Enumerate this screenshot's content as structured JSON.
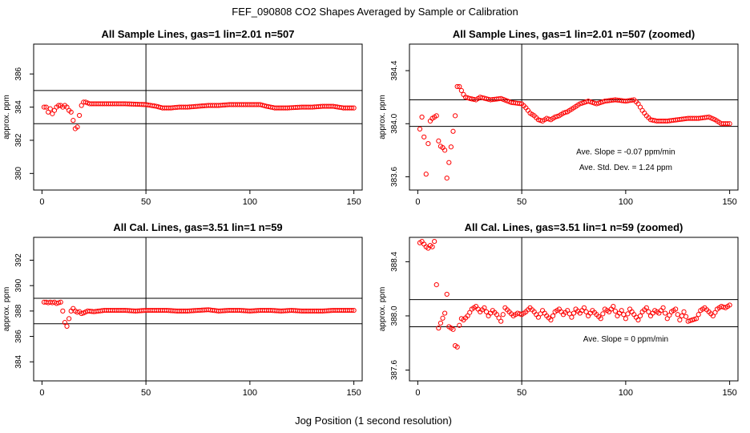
{
  "figure": {
    "title": "FEF_090808  CO2 Shapes Averaged by Sample or Calibration",
    "xlabel": "Jog Position (1 second resolution)"
  },
  "chart_data": [
    {
      "type": "scatter",
      "title": "All Sample Lines, gas=1 lin=2.01 n=507",
      "ylabel": "approx. ppm",
      "xlim": [
        -4,
        154
      ],
      "ylim": [
        379.0,
        387.8
      ],
      "xticks": [
        0,
        50,
        100,
        150
      ],
      "yticks": [
        380,
        382,
        384,
        386
      ],
      "ytick_labels": [
        "380",
        "382",
        "384",
        "386"
      ],
      "hlines": [
        383.0,
        385.0
      ],
      "vlines": [
        50
      ],
      "annotations": [],
      "marker_color": "#ff0000",
      "series": [
        {
          "name": "sample",
          "shape": [
            [
              1,
              384.0
            ],
            [
              2,
              384.0
            ],
            [
              3,
              383.7
            ],
            [
              4,
              383.9
            ],
            [
              5,
              383.6
            ],
            [
              6,
              383.8
            ],
            [
              7,
              384.0
            ],
            [
              8,
              384.1
            ],
            [
              9,
              384.1
            ],
            [
              10,
              384.0
            ],
            [
              11,
              384.1
            ],
            [
              12,
              384.0
            ],
            [
              13,
              383.8
            ],
            [
              14,
              383.7
            ],
            [
              15,
              383.2
            ],
            [
              16,
              382.7
            ],
            [
              17,
              382.8
            ],
            [
              18,
              383.5
            ],
            [
              19,
              384.1
            ],
            [
              20,
              384.3
            ],
            [
              21,
              384.3
            ],
            [
              22,
              384.25
            ],
            [
              23,
              384.2
            ],
            [
              24,
              384.2
            ],
            [
              25,
              384.2
            ],
            [
              30,
              384.2
            ],
            [
              40,
              384.2
            ],
            [
              50,
              384.15
            ],
            [
              55,
              384.05
            ],
            [
              58,
              383.95
            ],
            [
              62,
              383.95
            ],
            [
              66,
              384.0
            ],
            [
              70,
              384.0
            ],
            [
              75,
              384.05
            ],
            [
              80,
              384.1
            ],
            [
              85,
              384.1
            ],
            [
              90,
              384.15
            ],
            [
              95,
              384.15
            ],
            [
              100,
              384.15
            ],
            [
              105,
              384.15
            ],
            [
              108,
              384.05
            ],
            [
              112,
              383.95
            ],
            [
              118,
              383.95
            ],
            [
              125,
              384.0
            ],
            [
              130,
              384.0
            ],
            [
              135,
              384.05
            ],
            [
              140,
              384.05
            ],
            [
              145,
              383.95
            ],
            [
              150,
              383.95
            ]
          ]
        }
      ]
    },
    {
      "type": "scatter",
      "title": "All Sample Lines, gas=1 lin=2.01 n=507 (zoomed)",
      "ylabel": "approx. ppm",
      "xlim": [
        -4,
        154
      ],
      "ylim": [
        383.5,
        384.6
      ],
      "xticks": [
        0,
        50,
        100,
        150
      ],
      "yticks": [
        383.6,
        384.0,
        384.4
      ],
      "ytick_labels": [
        "383.6",
        "384.0",
        "384.4"
      ],
      "hlines": [
        384.18,
        383.98
      ],
      "vlines": [
        50
      ],
      "annotations": [
        {
          "text": "Ave. Slope =  -0.07  ppm/min",
          "x": 100,
          "y": 383.77
        },
        {
          "text": "Ave. Std. Dev. =  1.24  ppm",
          "x": 100,
          "y": 383.65
        }
      ],
      "marker_color": "#ff0000",
      "series": [
        {
          "name": "sample",
          "shape": [
            [
              1,
              383.96
            ],
            [
              2,
              384.05
            ],
            [
              3,
              383.9
            ],
            [
              4,
              383.62
            ],
            [
              5,
              383.85
            ],
            [
              6,
              384.02
            ],
            [
              7,
              384.04
            ],
            [
              8,
              384.05
            ],
            [
              9,
              384.06
            ],
            [
              10,
              383.87
            ],
            [
              11,
              383.83
            ],
            [
              12,
              383.82
            ],
            [
              13,
              383.8
            ],
            [
              14,
              383.59
            ],
            [
              18,
              384.06
            ],
            [
              19,
              384.28
            ],
            [
              20,
              384.28
            ],
            [
              21,
              384.25
            ],
            [
              22,
              384.22
            ],
            [
              23,
              384.2
            ],
            [
              25,
              384.19
            ],
            [
              28,
              384.18
            ],
            [
              30,
              384.2
            ],
            [
              35,
              384.18
            ],
            [
              40,
              384.19
            ],
            [
              45,
              384.16
            ],
            [
              50,
              384.15
            ],
            [
              52,
              384.12
            ],
            [
              54,
              384.08
            ],
            [
              56,
              384.06
            ],
            [
              58,
              384.03
            ],
            [
              60,
              384.02
            ],
            [
              62,
              384.04
            ],
            [
              64,
              384.03
            ],
            [
              66,
              384.05
            ],
            [
              68,
              384.06
            ],
            [
              70,
              384.08
            ],
            [
              72,
              384.09
            ],
            [
              75,
              384.12
            ],
            [
              78,
              384.15
            ],
            [
              82,
              384.17
            ],
            [
              86,
              384.15
            ],
            [
              90,
              384.17
            ],
            [
              95,
              384.18
            ],
            [
              100,
              384.17
            ],
            [
              104,
              384.18
            ],
            [
              106,
              384.15
            ],
            [
              108,
              384.1
            ],
            [
              110,
              384.06
            ],
            [
              112,
              384.03
            ],
            [
              115,
              384.02
            ],
            [
              120,
              384.02
            ],
            [
              125,
              384.03
            ],
            [
              130,
              384.04
            ],
            [
              135,
              384.04
            ],
            [
              140,
              384.05
            ],
            [
              143,
              384.03
            ],
            [
              146,
              384.0
            ],
            [
              148,
              384.0
            ],
            [
              150,
              384.0
            ]
          ]
        }
      ]
    },
    {
      "type": "scatter",
      "title": "All Cal. Lines, gas=3.51 lin=1 n=59",
      "ylabel": "approx. ppm",
      "xlim": [
        -4,
        154
      ],
      "ylim": [
        382.5,
        393.8
      ],
      "xticks": [
        0,
        50,
        100,
        150
      ],
      "yticks": [
        384,
        386,
        388,
        390,
        392
      ],
      "ytick_labels": [
        "384",
        "386",
        "388",
        "390",
        "392"
      ],
      "hlines": [
        389.0,
        387.0
      ],
      "vlines": [
        50
      ],
      "annotations": [],
      "marker_color": "#ff0000",
      "series": [
        {
          "name": "cal",
          "shape": [
            [
              1,
              388.7
            ],
            [
              2,
              388.7
            ],
            [
              3,
              388.65
            ],
            [
              4,
              388.7
            ],
            [
              5,
              388.65
            ],
            [
              6,
              388.7
            ],
            [
              7,
              388.6
            ],
            [
              8,
              388.65
            ],
            [
              9,
              388.7
            ],
            [
              10,
              388.0
            ],
            [
              11,
              387.1
            ],
            [
              12,
              386.8
            ],
            [
              13,
              387.4
            ],
            [
              14,
              388.0
            ],
            [
              15,
              388.2
            ],
            [
              16,
              388.0
            ],
            [
              17,
              387.9
            ],
            [
              18,
              387.95
            ],
            [
              19,
              387.8
            ],
            [
              20,
              387.85
            ],
            [
              22,
              388.0
            ],
            [
              25,
              387.95
            ],
            [
              30,
              388.05
            ],
            [
              35,
              388.05
            ],
            [
              40,
              388.05
            ],
            [
              45,
              388.0
            ],
            [
              50,
              388.05
            ],
            [
              55,
              388.05
            ],
            [
              60,
              388.05
            ],
            [
              65,
              388.0
            ],
            [
              70,
              388.0
            ],
            [
              75,
              388.05
            ],
            [
              80,
              388.1
            ],
            [
              85,
              388.0
            ],
            [
              90,
              388.05
            ],
            [
              95,
              388.05
            ],
            [
              100,
              388.0
            ],
            [
              105,
              388.05
            ],
            [
              110,
              388.05
            ],
            [
              115,
              388.0
            ],
            [
              120,
              388.05
            ],
            [
              125,
              388.0
            ],
            [
              130,
              388.0
            ],
            [
              135,
              388.0
            ],
            [
              140,
              388.05
            ],
            [
              145,
              388.05
            ],
            [
              150,
              388.05
            ]
          ]
        }
      ]
    },
    {
      "type": "scatter",
      "title": "All Cal. Lines, gas=3.51 lin=1 n=59 (zoomed)",
      "ylabel": "approx. ppm",
      "xlim": [
        -4,
        154
      ],
      "ylim": [
        387.52,
        388.58
      ],
      "xticks": [
        0,
        50,
        100,
        150
      ],
      "yticks": [
        387.6,
        388.0,
        388.4
      ],
      "ytick_labels": [
        "387.6",
        "388.0",
        "388.4"
      ],
      "hlines": [
        388.12,
        387.92
      ],
      "vlines": [
        50
      ],
      "annotations": [
        {
          "text": "Ave. Slope =  0  ppm/min",
          "x": 100,
          "y": 387.81
        }
      ],
      "marker_color": "#ff0000",
      "series": [
        {
          "name": "cal",
          "shape": [
            [
              1,
              388.54
            ],
            [
              2,
              388.55
            ],
            [
              3,
              388.53
            ],
            [
              4,
              388.51
            ],
            [
              5,
              388.5
            ],
            [
              6,
              388.52
            ],
            [
              7,
              388.51
            ],
            [
              8,
              388.55
            ],
            [
              10,
              387.91
            ],
            [
              13,
              388.02
            ],
            [
              14,
              388.16
            ],
            [
              15,
              387.92
            ],
            [
              16,
              387.91
            ],
            [
              17,
              387.9
            ],
            [
              18,
              387.78
            ],
            [
              19,
              387.77
            ],
            [
              20,
              387.93
            ],
            [
              21,
              387.98
            ],
            [
              22,
              387.97
            ],
            [
              24,
              388.0
            ],
            [
              26,
              388.05
            ],
            [
              28,
              388.07
            ],
            [
              30,
              388.03
            ],
            [
              32,
              388.06
            ],
            [
              34,
              388.0
            ],
            [
              36,
              388.04
            ],
            [
              38,
              388.01
            ],
            [
              40,
              387.96
            ],
            [
              42,
              388.06
            ],
            [
              44,
              388.03
            ],
            [
              46,
              388.0
            ],
            [
              48,
              388.02
            ],
            [
              50,
              388.01
            ],
            [
              52,
              388.03
            ],
            [
              54,
              388.06
            ],
            [
              56,
              388.03
            ],
            [
              58,
              387.99
            ],
            [
              60,
              388.04
            ],
            [
              62,
              388.0
            ],
            [
              64,
              387.97
            ],
            [
              66,
              388.03
            ],
            [
              68,
              388.05
            ],
            [
              70,
              388.01
            ],
            [
              72,
              388.04
            ],
            [
              74,
              387.99
            ],
            [
              76,
              388.05
            ],
            [
              78,
              388.02
            ],
            [
              80,
              388.06
            ],
            [
              82,
              388.0
            ],
            [
              84,
              388.04
            ],
            [
              86,
              388.01
            ],
            [
              88,
              387.98
            ],
            [
              90,
              388.05
            ],
            [
              92,
              388.03
            ],
            [
              94,
              388.07
            ],
            [
              96,
              388.0
            ],
            [
              98,
              388.04
            ],
            [
              100,
              387.98
            ],
            [
              102,
              388.05
            ],
            [
              104,
              388.01
            ],
            [
              106,
              387.97
            ],
            [
              108,
              388.03
            ],
            [
              110,
              388.06
            ],
            [
              112,
              388.0
            ],
            [
              114,
              388.04
            ],
            [
              116,
              388.02
            ],
            [
              118,
              388.06
            ],
            [
              120,
              387.98
            ],
            [
              122,
              388.03
            ],
            [
              124,
              388.05
            ],
            [
              126,
              387.97
            ],
            [
              128,
              388.03
            ],
            [
              130,
              387.96
            ],
            [
              132,
              387.97
            ],
            [
              134,
              387.98
            ],
            [
              136,
              388.04
            ],
            [
              138,
              388.06
            ],
            [
              140,
              388.03
            ],
            [
              142,
              388.0
            ],
            [
              144,
              388.05
            ],
            [
              146,
              388.07
            ],
            [
              148,
              388.06
            ],
            [
              150,
              388.08
            ]
          ]
        }
      ]
    }
  ]
}
